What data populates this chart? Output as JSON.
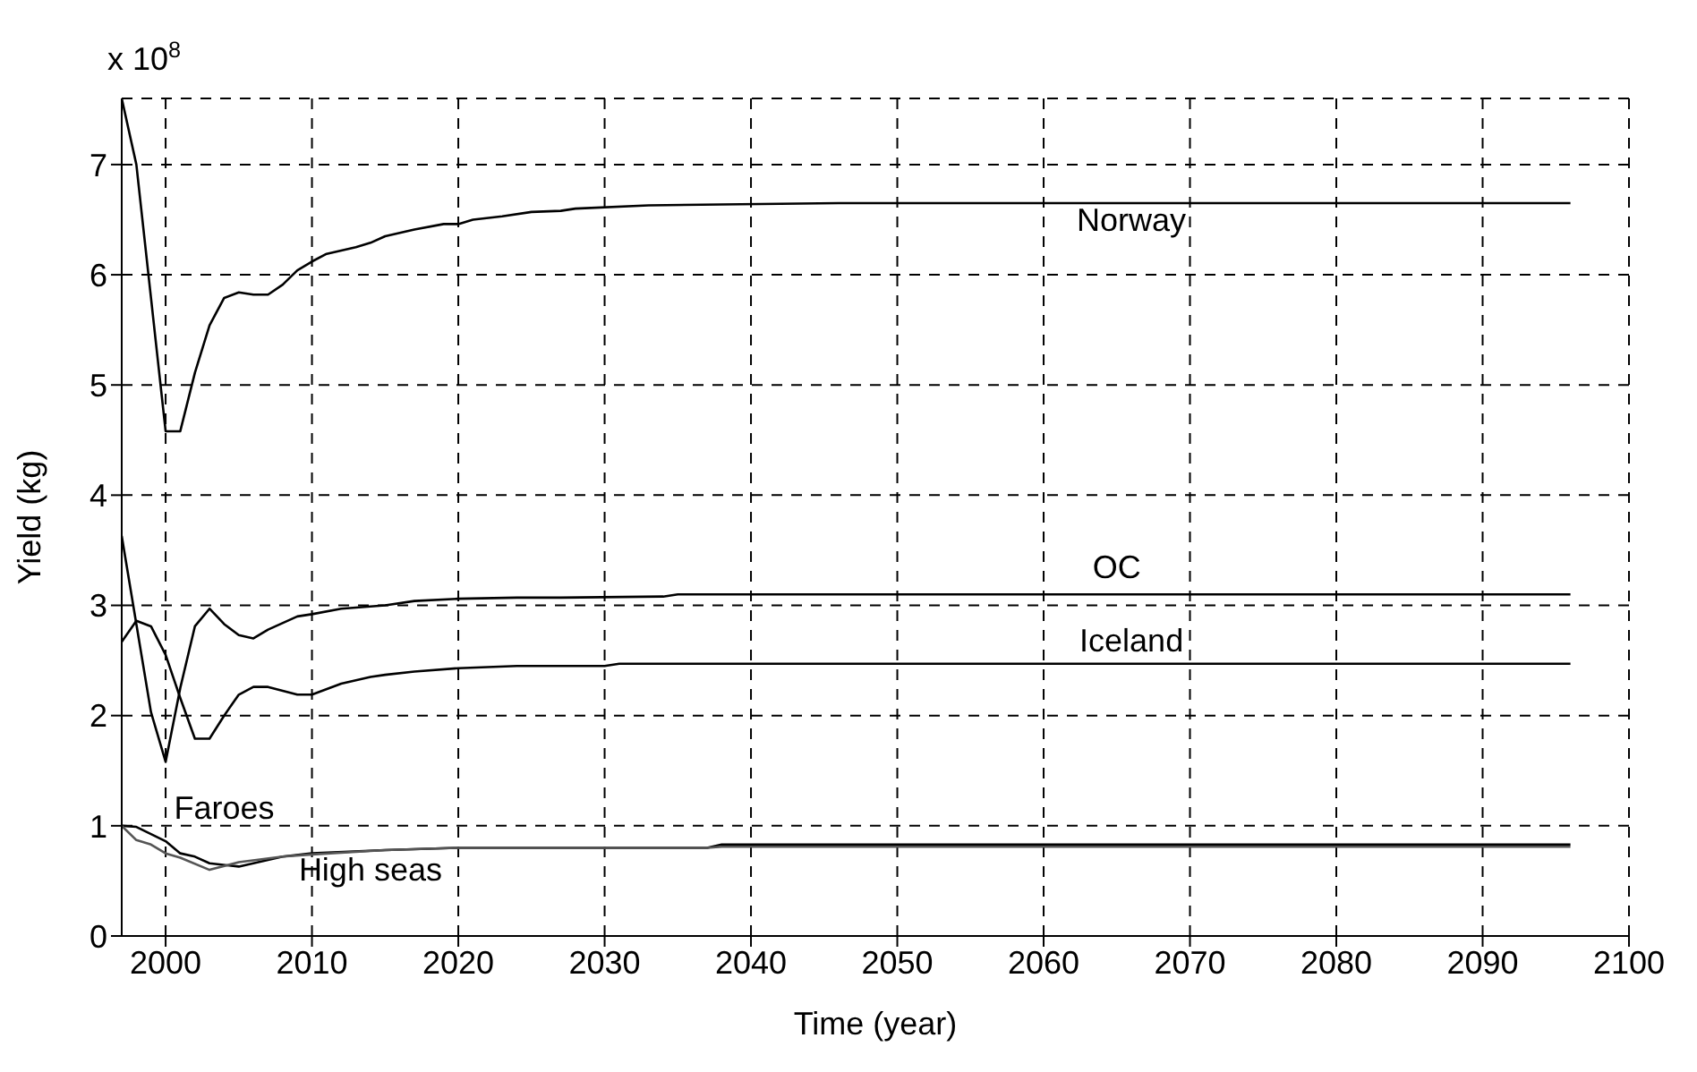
{
  "chart_data": {
    "type": "line",
    "xlabel": "Time (year)",
    "ylabel": "Yield (kg)",
    "annotations": [
      "x 10$^{8}$"
    ],
    "xlim": [
      1997,
      2100
    ],
    "ylim": [
      0,
      7.6
    ],
    "xticks": [
      2000,
      2010,
      2020,
      2030,
      2040,
      2050,
      2060,
      2070,
      2080,
      2090,
      2100
    ],
    "yticks": [
      0,
      1,
      2,
      3,
      4,
      5,
      6,
      7
    ],
    "grid": true,
    "marker": "none",
    "line_style": "solid",
    "series": [
      {
        "name": "Norway",
        "color": "#000000",
        "x": [
          1997,
          1998,
          2000,
          2001,
          2002,
          2003,
          2004,
          2005,
          2006,
          2007,
          2008,
          2009,
          2010,
          2011,
          2013,
          2014,
          2015,
          2017,
          2019,
          2020,
          2021,
          2023,
          2025,
          2027,
          2028,
          2033,
          2046,
          2096
        ],
        "values": [
          7.6,
          7.0,
          4.58,
          4.58,
          5.11,
          5.54,
          5.79,
          5.84,
          5.82,
          5.82,
          5.91,
          6.04,
          6.12,
          6.19,
          6.25,
          6.29,
          6.35,
          6.41,
          6.46,
          6.46,
          6.5,
          6.53,
          6.57,
          6.58,
          6.6,
          6.63,
          6.65,
          6.65
        ]
      },
      {
        "name": "OC",
        "color": "#000000",
        "x": [
          1997,
          1999,
          2000,
          2001,
          2002,
          2003,
          2004,
          2005,
          2006,
          2007,
          2009,
          2010,
          2012,
          2015,
          2017,
          2020,
          2024,
          2027,
          2034,
          2035,
          2096
        ],
        "values": [
          3.63,
          2.03,
          1.58,
          2.25,
          2.81,
          2.97,
          2.83,
          2.73,
          2.7,
          2.78,
          2.9,
          2.92,
          2.97,
          3.0,
          3.04,
          3.06,
          3.07,
          3.07,
          3.08,
          3.1,
          3.1
        ]
      },
      {
        "name": "Iceland",
        "color": "#000000",
        "x": [
          1997,
          1998,
          1999,
          2000,
          2001,
          2002,
          2003,
          2004,
          2005,
          2006,
          2007,
          2009,
          2010,
          2012,
          2014,
          2015,
          2017,
          2020,
          2024,
          2030,
          2031,
          2096
        ],
        "values": [
          2.67,
          2.86,
          2.81,
          2.55,
          2.16,
          1.79,
          1.79,
          2.0,
          2.19,
          2.26,
          2.26,
          2.19,
          2.19,
          2.29,
          2.35,
          2.37,
          2.4,
          2.43,
          2.45,
          2.45,
          2.47,
          2.47
        ]
      },
      {
        "name": "Faroes",
        "color": "#000000",
        "x": [
          1997,
          1998,
          2000,
          2001,
          2002,
          2003,
          2005,
          2008,
          2010,
          2015,
          2020,
          2037,
          2038,
          2096
        ],
        "values": [
          1.0,
          0.99,
          0.86,
          0.75,
          0.72,
          0.66,
          0.63,
          0.72,
          0.75,
          0.78,
          0.8,
          0.8,
          0.83,
          0.83
        ]
      },
      {
        "name": "High seas",
        "color": "#555555",
        "x": [
          1997,
          1998,
          1999,
          2000,
          2001,
          2003,
          2005,
          2008,
          2010,
          2015,
          2020,
          2037,
          2038,
          2096
        ],
        "values": [
          1.0,
          0.87,
          0.83,
          0.75,
          0.71,
          0.6,
          0.67,
          0.72,
          0.74,
          0.78,
          0.8,
          0.8,
          0.81,
          0.81
        ]
      }
    ]
  }
}
